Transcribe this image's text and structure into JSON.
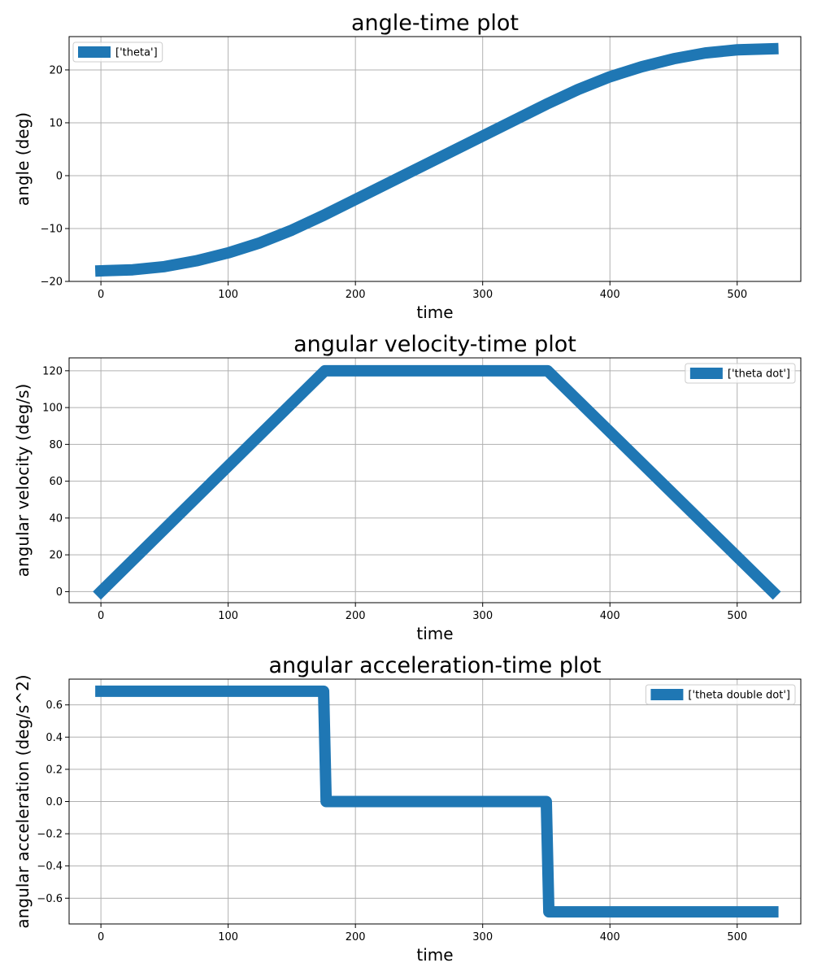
{
  "colors": {
    "series": "#1f77b4",
    "grid": "#b0b0b0",
    "axis": "#000000"
  },
  "chart_data": [
    {
      "type": "line",
      "title": "angle-time plot",
      "xlabel": "time",
      "ylabel": "angle (deg)",
      "xlim": [
        -25,
        550
      ],
      "ylim": [
        -20,
        26.3
      ],
      "xticks": [
        0,
        100,
        200,
        300,
        400,
        500
      ],
      "xtick_labels": [
        "0",
        "100",
        "200",
        "300",
        "400",
        "500"
      ],
      "yticks": [
        -20,
        -10,
        0,
        10,
        20
      ],
      "ytick_labels": [
        "−20",
        "−10",
        "0",
        "10",
        "20"
      ],
      "grid": true,
      "legend": {
        "position": "upper-left",
        "labels": [
          "['theta']"
        ]
      },
      "series": [
        {
          "name": "['theta']",
          "x": [
            0,
            25,
            50,
            75,
            100,
            125,
            150,
            175,
            200,
            225,
            250,
            275,
            300,
            325,
            350,
            375,
            400,
            425,
            450,
            475,
            500,
            528
          ],
          "y": [
            -18.0,
            -17.8,
            -17.2,
            -16.1,
            -14.6,
            -12.7,
            -10.3,
            -7.5,
            -4.5,
            -1.5,
            1.5,
            4.5,
            7.5,
            10.5,
            13.5,
            16.3,
            18.7,
            20.6,
            22.1,
            23.2,
            23.8,
            24.0
          ]
        }
      ]
    },
    {
      "type": "line",
      "title": "angular velocity-time plot",
      "xlabel": "time",
      "ylabel": "angular velocity (deg/s)",
      "xlim": [
        -25,
        550
      ],
      "ylim": [
        -6,
        127
      ],
      "xticks": [
        0,
        100,
        200,
        300,
        400,
        500
      ],
      "xtick_labels": [
        "0",
        "100",
        "200",
        "300",
        "400",
        "500"
      ],
      "yticks": [
        0,
        20,
        40,
        60,
        80,
        100,
        120
      ],
      "ytick_labels": [
        "0",
        "20",
        "40",
        "60",
        "80",
        "100",
        "120"
      ],
      "grid": true,
      "legend": {
        "position": "upper-right",
        "labels": [
          "['theta dot']"
        ]
      },
      "series": [
        {
          "name": "['theta dot']",
          "x": [
            0,
            176,
            351,
            528
          ],
          "y": [
            0,
            120,
            120,
            0
          ]
        }
      ]
    },
    {
      "type": "line",
      "title": "angular acceleration-time plot",
      "xlabel": "time",
      "ylabel": "angular acceleration (deg/s^2)",
      "xlim": [
        -25,
        550
      ],
      "ylim": [
        -0.76,
        0.76
      ],
      "xticks": [
        0,
        100,
        200,
        300,
        400,
        500
      ],
      "xtick_labels": [
        "0",
        "100",
        "200",
        "300",
        "400",
        "500"
      ],
      "yticks": [
        -0.6,
        -0.4,
        -0.2,
        0.0,
        0.2,
        0.4,
        0.6
      ],
      "ytick_labels": [
        "−0.6",
        "−0.4",
        "−0.2",
        "0.0",
        "0.2",
        "0.4",
        "0.6"
      ],
      "grid": true,
      "legend": {
        "position": "upper-right",
        "labels": [
          "['theta double dot']"
        ]
      },
      "series": [
        {
          "name": "['theta double dot']",
          "x": [
            0,
            175,
            177,
            350,
            352,
            528
          ],
          "y": [
            0.685,
            0.685,
            0.0,
            0.0,
            -0.685,
            -0.685
          ]
        }
      ]
    }
  ]
}
